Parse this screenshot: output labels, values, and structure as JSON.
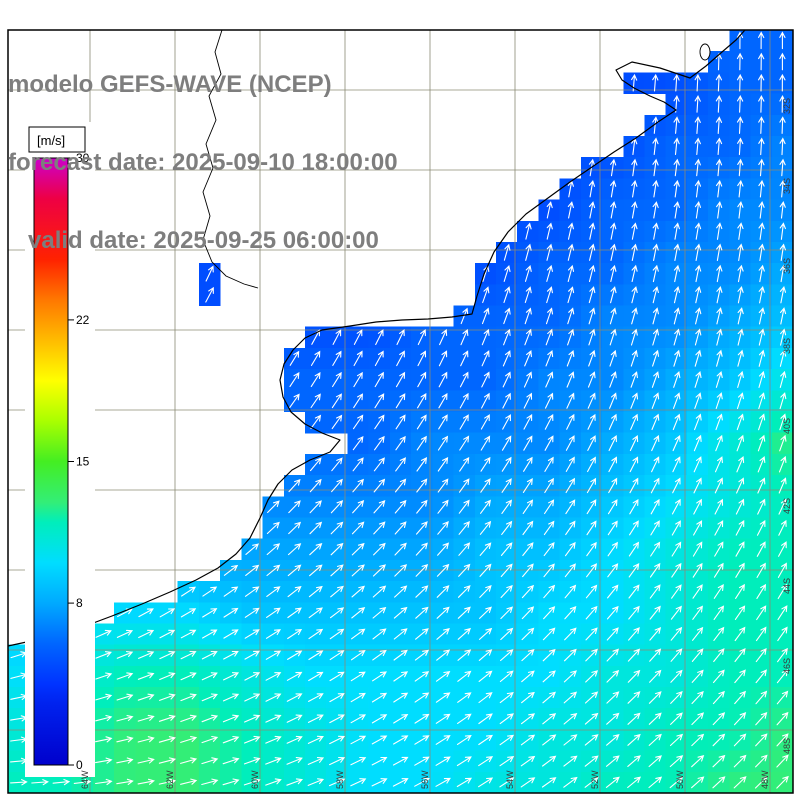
{
  "header": {
    "line1": "modelo GEFS-WAVE (NCEP)",
    "line2": "forecast date: 2025-09-10 18:00:00",
    "line3": "   valid date: 2025-09-25 06:00:00",
    "text_color": "#7e7e7e"
  },
  "chart_data": {
    "type": "heatmap",
    "variable": "wind speed field with direction arrows over the southwest Atlantic (Argentina / Uruguay coast)",
    "units": "m/s",
    "colorbar": {
      "label": "[m/s]",
      "min": 0,
      "max": 30,
      "ticks": [
        30,
        22,
        15,
        8,
        0
      ],
      "stops": [
        {
          "v": 0,
          "c": "#0000cc"
        },
        {
          "v": 3,
          "c": "#0022ee"
        },
        {
          "v": 4,
          "c": "#0033ff"
        },
        {
          "v": 6,
          "c": "#0066ff"
        },
        {
          "v": 8,
          "c": "#00aaff"
        },
        {
          "v": 10,
          "c": "#00ddff"
        },
        {
          "v": 12,
          "c": "#00eebb"
        },
        {
          "v": 13,
          "c": "#33ee77"
        },
        {
          "v": 15,
          "c": "#44ee22"
        },
        {
          "v": 17,
          "c": "#aaff00"
        },
        {
          "v": 19,
          "c": "#ffff00"
        },
        {
          "v": 21,
          "c": "#ffbb00"
        },
        {
          "v": 23,
          "c": "#ff7700"
        },
        {
          "v": 25,
          "c": "#ff2200"
        },
        {
          "v": 28,
          "c": "#ee0044"
        },
        {
          "v": 30,
          "c": "#cc00cc"
        }
      ]
    },
    "x_tick_labels": [
      "64W",
      "62W",
      "60W",
      "58W",
      "56W",
      "54W",
      "52W",
      "50W",
      "48W"
    ],
    "y_tick_labels": [
      "32S",
      "34S",
      "36S",
      "38S",
      "40S",
      "42S",
      "44S",
      "46S",
      "48S"
    ],
    "grid_color": "#8b8b74",
    "arrow_color": "#ffffff",
    "frame_color": "#000000",
    "land_color": "#ffffff",
    "speed_grid": [
      [
        5,
        5,
        5,
        5,
        5,
        4,
        4,
        4,
        4,
        4,
        5,
        6,
        6,
        6
      ],
      [
        5,
        5,
        5,
        5,
        5,
        4,
        4,
        4,
        4,
        4,
        5,
        5,
        6,
        6
      ],
      [
        4,
        4,
        4,
        4,
        4,
        4,
        4,
        4,
        4,
        5,
        5,
        6,
        6,
        7
      ],
      [
        4,
        4,
        4,
        4,
        4,
        4,
        4,
        4,
        5,
        5,
        6,
        6,
        7,
        7
      ],
      [
        5,
        5,
        5,
        5,
        5,
        4,
        5,
        5,
        5,
        6,
        6,
        7,
        7,
        8
      ],
      [
        5,
        5,
        5,
        5,
        5,
        5,
        5,
        6,
        6,
        6,
        7,
        7,
        8,
        9
      ],
      [
        5,
        5,
        5,
        5,
        6,
        6,
        6,
        6,
        6,
        7,
        7,
        8,
        9,
        11
      ],
      [
        6,
        6,
        6,
        6,
        6,
        6,
        6,
        7,
        7,
        7,
        8,
        9,
        11,
        13
      ],
      [
        7,
        7,
        7,
        7,
        7,
        7,
        7,
        7,
        8,
        8,
        9,
        10,
        11,
        12
      ],
      [
        8,
        8,
        8,
        8,
        8,
        8,
        8,
        8,
        9,
        9,
        10,
        11,
        12,
        12
      ],
      [
        9,
        10,
        10,
        10,
        9,
        9,
        9,
        9,
        9,
        10,
        10,
        11,
        12,
        12
      ],
      [
        10,
        11,
        12,
        12,
        11,
        10,
        10,
        10,
        10,
        10,
        11,
        11,
        12,
        12
      ],
      [
        11,
        12,
        13,
        13,
        12,
        11,
        10,
        10,
        10,
        11,
        11,
        12,
        12,
        13
      ],
      [
        12,
        12,
        13,
        13,
        12,
        11,
        10,
        10,
        11,
        11,
        12,
        12,
        13,
        13
      ]
    ],
    "dir_grid": [
      [
        10,
        10,
        10,
        10,
        10,
        10,
        10,
        10,
        8,
        6,
        5,
        3,
        0,
        0
      ],
      [
        12,
        12,
        12,
        12,
        12,
        12,
        12,
        10,
        8,
        6,
        5,
        4,
        2,
        0
      ],
      [
        15,
        15,
        15,
        15,
        15,
        15,
        14,
        12,
        10,
        9,
        8,
        6,
        4,
        3
      ],
      [
        20,
        20,
        20,
        20,
        20,
        19,
        18,
        16,
        14,
        12,
        10,
        9,
        7,
        6
      ],
      [
        26,
        26,
        26,
        25,
        24,
        23,
        21,
        19,
        17,
        15,
        13,
        11,
        10,
        9
      ],
      [
        33,
        33,
        32,
        31,
        30,
        28,
        26,
        24,
        21,
        19,
        17,
        15,
        13,
        12
      ],
      [
        40,
        39,
        38,
        37,
        35,
        33,
        31,
        29,
        26,
        24,
        21,
        19,
        17,
        15
      ],
      [
        46,
        45,
        44,
        42,
        40,
        38,
        36,
        34,
        31,
        29,
        26,
        24,
        21,
        19
      ],
      [
        52,
        51,
        49,
        47,
        45,
        43,
        41,
        38,
        36,
        33,
        31,
        28,
        26,
        24
      ],
      [
        60,
        58,
        56,
        53,
        51,
        48,
        46,
        43,
        41,
        38,
        36,
        33,
        31,
        28
      ],
      [
        68,
        66,
        63,
        60,
        57,
        54,
        51,
        48,
        46,
        43,
        41,
        38,
        35,
        33
      ],
      [
        76,
        73,
        70,
        66,
        63,
        60,
        57,
        54,
        51,
        48,
        45,
        43,
        40,
        38
      ],
      [
        83,
        80,
        76,
        72,
        68,
        65,
        61,
        58,
        55,
        52,
        49,
        47,
        44,
        42
      ],
      [
        88,
        85,
        81,
        77,
        73,
        69,
        65,
        62,
        58,
        55,
        52,
        50,
        47,
        45
      ]
    ]
  }
}
